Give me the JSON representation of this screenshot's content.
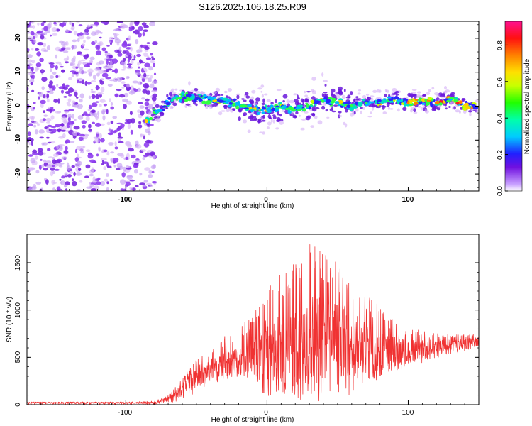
{
  "title": "S126.2025.106.18.25.R09",
  "chart_data": [
    {
      "type": "heatmap",
      "xlabel": "Height of straight line (km)",
      "ylabel": "Frequency (Hz)",
      "xlim": [
        -170,
        150
      ],
      "ylim": [
        -25,
        25
      ],
      "xticks": [
        "-100",
        "0",
        "100"
      ],
      "xtick_values": [
        -100,
        0,
        100
      ],
      "yticks": [
        "-20",
        "-10",
        "0",
        "10",
        "20"
      ],
      "ytick_values": [
        -20,
        -10,
        0,
        10,
        20
      ],
      "colorbar": {
        "label": "Normalized spectral amplitude",
        "range": [
          0,
          0.93
        ],
        "ticks": [
          "0.0",
          "0.2",
          "0.4",
          "0.6",
          "0.8"
        ],
        "tick_values": [
          0,
          0.2,
          0.4,
          0.6,
          0.8
        ]
      },
      "ridge": {
        "x": [
          -86,
          -80,
          -74,
          -68,
          -60,
          -50,
          -40,
          -30,
          -20,
          -10,
          0,
          10,
          20,
          30,
          40,
          50,
          60,
          70,
          80,
          90,
          100,
          110,
          120,
          130,
          140,
          150
        ],
        "y": [
          -5,
          -2,
          -1,
          2,
          3,
          2.5,
          2,
          1.5,
          0.5,
          -1,
          -1,
          0,
          -1,
          0,
          2,
          1,
          0,
          1,
          1.5,
          2,
          1,
          1.5,
          1,
          2,
          0,
          0
        ]
      },
      "noise_region_x": [
        -170,
        -85
      ]
    },
    {
      "type": "line",
      "xlabel": "Height of straight line (km)",
      "ylabel": "SNR (10 * v/v)",
      "xlim": [
        -170,
        150
      ],
      "ylim": [
        0,
        1800
      ],
      "xticks": [
        "-100",
        "0",
        "100"
      ],
      "xtick_values": [
        -100,
        0,
        100
      ],
      "yticks": [
        "0",
        "500",
        "1000",
        "1500"
      ],
      "ytick_values": [
        0,
        500,
        1000,
        1500
      ],
      "color": "#f03232",
      "series": [
        {
          "name": "",
          "x": [
            -170,
            -150,
            -120,
            -100,
            -80,
            -70,
            -60,
            -55,
            -50,
            -45,
            -40,
            -30,
            -20,
            -10,
            0,
            10,
            20,
            30,
            40,
            50,
            60,
            70,
            80,
            90,
            100,
            110,
            120,
            130,
            140,
            150
          ],
          "y": [
            20,
            20,
            20,
            20,
            20,
            60,
            150,
            250,
            320,
            330,
            370,
            430,
            480,
            500,
            550,
            600,
            650,
            700,
            720,
            700,
            650,
            600,
            570,
            560,
            570,
            590,
            610,
            630,
            650,
            680
          ],
          "envelope_high": [
            30,
            30,
            30,
            30,
            40,
            100,
            280,
            380,
            480,
            540,
            620,
            730,
            820,
            950,
            1400,
            1480,
            1550,
            1760,
            1600,
            1520,
            1360,
            1180,
            1040,
            920,
            820,
            780,
            760,
            740,
            740,
            760
          ],
          "envelope_low": [
            5,
            5,
            5,
            5,
            5,
            20,
            40,
            80,
            120,
            180,
            200,
            250,
            300,
            250,
            50,
            80,
            60,
            40,
            20,
            60,
            100,
            180,
            280,
            340,
            400,
            440,
            480,
            520,
            560,
            600
          ]
        }
      ]
    }
  ]
}
